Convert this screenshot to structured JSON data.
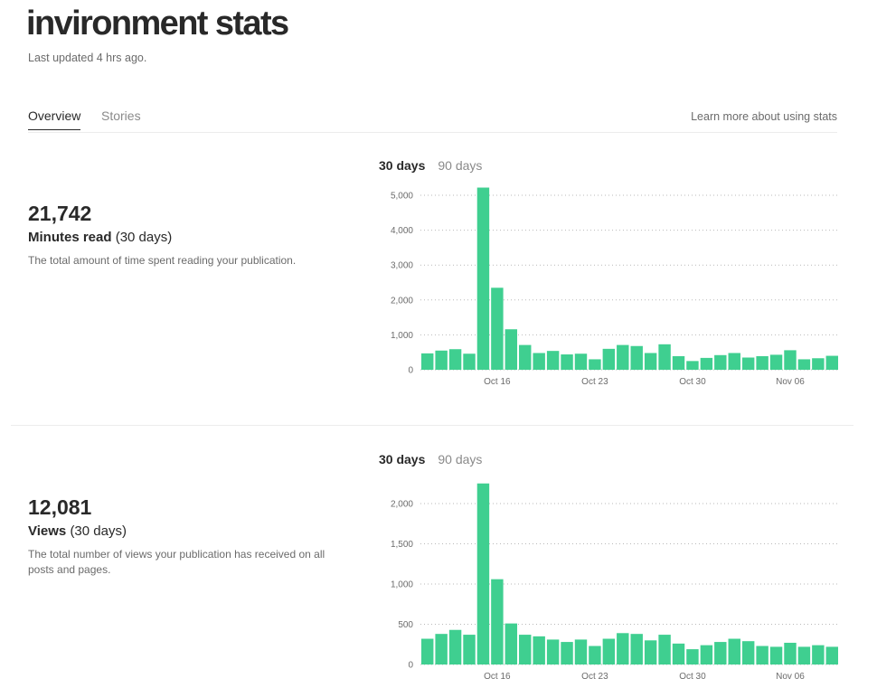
{
  "header": {
    "title": "invironment stats",
    "last_updated": "Last updated 4 hrs ago."
  },
  "tabs": {
    "overview": "Overview",
    "stories": "Stories",
    "learn_more": "Learn more about using stats"
  },
  "colors": {
    "bar": "#3fcf90",
    "text": "#292929",
    "muted": "#6b6b6b"
  },
  "stats": [
    {
      "value": "21,742",
      "label": "Minutes read",
      "label_suffix": "(30 days)",
      "description": "The total amount of time spent reading your publication.",
      "range_active": "30 days",
      "range_inactive": "90 days"
    },
    {
      "value": "12,081",
      "label": "Views",
      "label_suffix": "(30 days)",
      "description": "The total number of views your publication has received on all posts and pages.",
      "range_active": "30 days",
      "range_inactive": "90 days"
    }
  ],
  "chart_data": [
    {
      "type": "bar",
      "title": "Minutes read",
      "ylim": [
        0,
        5000
      ],
      "yticks": [
        0,
        1000,
        2000,
        3000,
        4000,
        5000
      ],
      "ytick_labels": [
        "0",
        "1,000",
        "2,000",
        "3,000",
        "4,000",
        "5,000"
      ],
      "xtick_labels": [
        {
          "index": 5,
          "label": "Oct 16"
        },
        {
          "index": 12,
          "label": "Oct 23"
        },
        {
          "index": 19,
          "label": "Oct 30"
        },
        {
          "index": 26,
          "label": "Nov 06"
        }
      ],
      "values": [
        470,
        550,
        590,
        460,
        5220,
        2350,
        1160,
        710,
        480,
        540,
        440,
        460,
        300,
        600,
        710,
        680,
        480,
        730,
        390,
        250,
        340,
        420,
        480,
        350,
        390,
        430,
        560,
        300,
        330,
        400
      ]
    },
    {
      "type": "bar",
      "title": "Views",
      "ylim": [
        0,
        2000
      ],
      "yticks": [
        0,
        500,
        1000,
        1500,
        2000
      ],
      "ytick_labels": [
        "0",
        "500",
        "1,000",
        "1,500",
        "2,000"
      ],
      "xtick_labels": [
        {
          "index": 5,
          "label": "Oct 16"
        },
        {
          "index": 12,
          "label": "Oct 23"
        },
        {
          "index": 19,
          "label": "Oct 30"
        },
        {
          "index": 26,
          "label": "Nov 06"
        }
      ],
      "values": [
        320,
        380,
        430,
        370,
        2250,
        1060,
        510,
        370,
        350,
        310,
        280,
        310,
        230,
        320,
        390,
        380,
        300,
        370,
        260,
        190,
        240,
        280,
        320,
        290,
        230,
        220,
        270,
        220,
        240,
        220
      ]
    }
  ]
}
